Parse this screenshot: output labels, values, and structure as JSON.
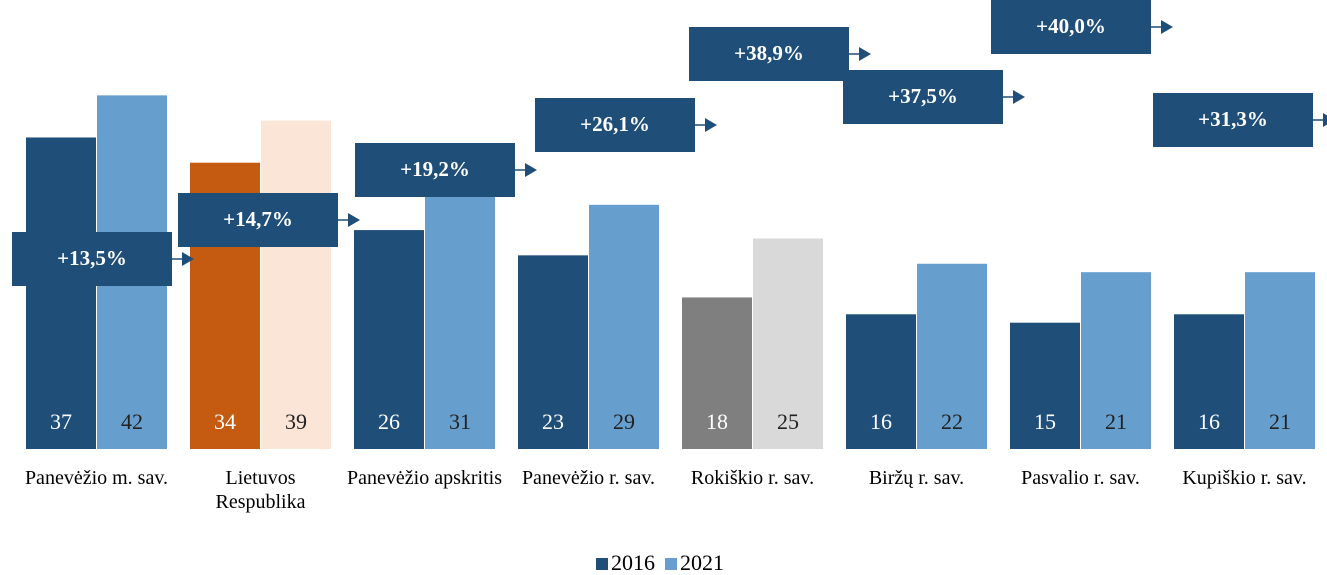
{
  "chart_data": {
    "type": "bar",
    "categories": [
      "Panevėžio m. sav.",
      "Lietuvos Respublika",
      "Panevėžio apskritis",
      "Panevėžio r. sav.",
      "Rokiškio r. sav.",
      "Biržų r. sav.",
      "Pasvalio r. sav.",
      "Kupiškio r. sav."
    ],
    "series": [
      {
        "name": "2016",
        "color": "#1f4e79",
        "values": [
          37,
          34,
          26,
          23,
          18,
          16,
          15,
          16
        ],
        "colors": [
          "#1f4e79",
          "#c55a11",
          "#1f4e79",
          "#1f4e79",
          "#7f7f7f",
          "#1f4e79",
          "#1f4e79",
          "#1f4e79"
        ]
      },
      {
        "name": "2021",
        "color": "#669fcd",
        "values": [
          42,
          39,
          31,
          29,
          25,
          22,
          21,
          21
        ],
        "colors": [
          "#669fcd",
          "#fbe5d6",
          "#669fcd",
          "#669fcd",
          "#d9d9d9",
          "#669fcd",
          "#669fcd",
          "#669fcd"
        ]
      }
    ],
    "annotations": [
      "+13,5%",
      "+14,7%",
      "+19,2%",
      "+26,1%",
      "+38,9%",
      "+37,5%",
      "+40,0%",
      "+31,3%"
    ],
    "ylim": [
      0,
      50
    ],
    "legend": "bottom"
  }
}
